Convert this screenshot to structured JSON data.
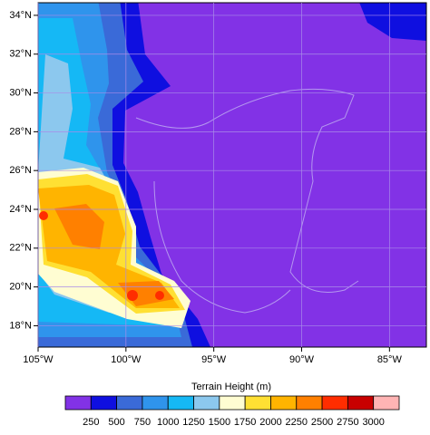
{
  "map": {
    "xlim": [
      -105,
      -82.9
    ],
    "ylim": [
      16.9,
      34.65
    ],
    "xticks": [
      {
        "value": -105,
        "label": "105°W"
      },
      {
        "value": -100,
        "label": "100°W"
      },
      {
        "value": -95,
        "label": "95°W"
      },
      {
        "value": -90,
        "label": "90°W"
      },
      {
        "value": -85,
        "label": "85°W"
      }
    ],
    "yticks": [
      {
        "value": 18,
        "label": "18°N"
      },
      {
        "value": 20,
        "label": "20°N"
      },
      {
        "value": 22,
        "label": "22°N"
      },
      {
        "value": 24,
        "label": "24°N"
      },
      {
        "value": 26,
        "label": "26°N"
      },
      {
        "value": 28,
        "label": "28°N"
      },
      {
        "value": 30,
        "label": "30°N"
      },
      {
        "value": 32,
        "label": "32°N"
      },
      {
        "value": 34,
        "label": "34°N"
      }
    ],
    "grid": true,
    "colorbar": {
      "label": "Terrain Height  (m)",
      "levels": [
        250,
        500,
        750,
        1000,
        1250,
        1500,
        1750,
        2000,
        2250,
        2500,
        2750,
        3000
      ],
      "colors": [
        "#8232e6",
        "#0f0fe0",
        "#3a6ad8",
        "#2f94ec",
        "#15b8f5",
        "#8cc8ee",
        "#fffdd2",
        "#ffe033",
        "#ffb400",
        "#ff8000",
        "#ff2d00",
        "#c80000",
        "#ffb4b4"
      ]
    }
  }
}
